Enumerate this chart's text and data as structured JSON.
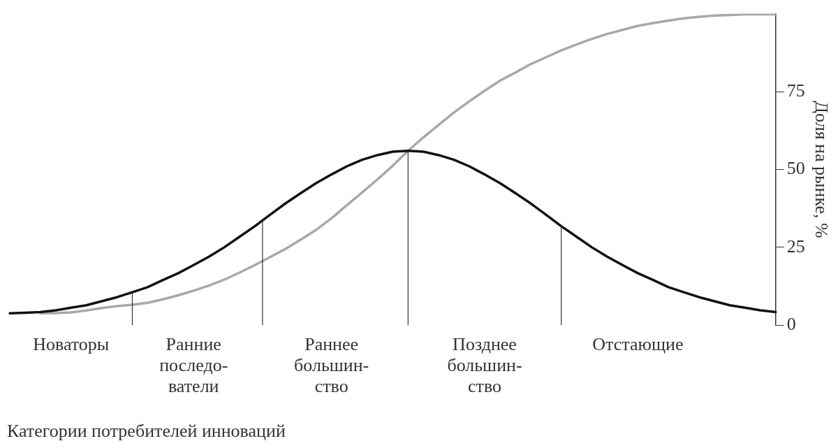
{
  "chart_data": {
    "type": "line",
    "xlabel": "Категории потребителей инноваций",
    "ylabel": "Доля на рынке, %",
    "categories": [
      null,
      null,
      null,
      null,
      "Новаторы",
      null,
      null,
      null,
      null,
      null,
      null,
      null,
      "Ранние\nпоследо-\nватели",
      null,
      null,
      null,
      null,
      null,
      null,
      null,
      null,
      "Раннее\nбольшин-\nство",
      null,
      null,
      null,
      null,
      null,
      null,
      null,
      null,
      null,
      "Позднее\nбольшин-\nство",
      null,
      null,
      null,
      null,
      null,
      null,
      null,
      null,
      null,
      "Отстающие",
      null,
      null,
      null,
      null,
      null,
      null,
      null,
      null,
      null
    ],
    "ylim": [
      0,
      100
    ],
    "yticks": [
      0,
      25,
      50,
      75
    ],
    "grid": false,
    "legend": false,
    "marker": "none",
    "series": [
      {
        "color": "#111111",
        "values": [
          3.8,
          4,
          4.2,
          4.8,
          5.6,
          6.4,
          7.7,
          9,
          10.6,
          12.2,
          14.5,
          16.7,
          19.3,
          22,
          25,
          28.4,
          31.8,
          35.5,
          39.1,
          42.4,
          45.6,
          48.4,
          51,
          53.1,
          54.6,
          55.7,
          56,
          55.7,
          54.6,
          53.1,
          51,
          48.4,
          45.6,
          42.4,
          39.1,
          35.5,
          31.8,
          28.4,
          25,
          22,
          19.3,
          16.7,
          14.5,
          12.2,
          10.6,
          9,
          7.7,
          6.4,
          5.6,
          4.8,
          4.2
        ]
      },
      {
        "color": "#a8a8a8",
        "values": [
          null,
          null,
          3.8,
          3.9,
          4.1,
          4.7,
          5.5,
          6.1,
          6.6,
          7.2,
          8.3,
          9.6,
          11.1,
          12.7,
          14.6,
          16.9,
          19.3,
          21.9,
          24.5,
          27.5,
          30.6,
          34.3,
          38.5,
          42.6,
          46.8,
          51.2,
          56,
          60.3,
          64.3,
          68.3,
          71.9,
          75.3,
          78.5,
          81.1,
          83.8,
          86,
          88.2,
          90.1,
          91.9,
          93.5,
          94.8,
          96.1,
          97,
          97.8,
          98.5,
          99,
          99.4,
          99.6,
          99.8,
          99.8,
          99.8
        ]
      }
    ]
  }
}
